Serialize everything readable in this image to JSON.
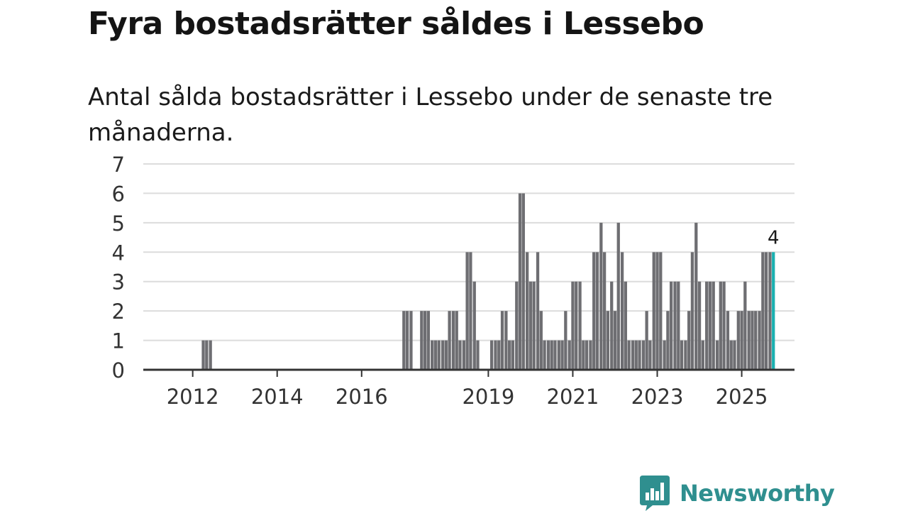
{
  "title": "Fyra bostadsrätter såldes i Lessebo",
  "subtitle": "Antal sålda bostadsrätter i Lessebo under de senaste tre månaderna.",
  "brand": {
    "name": "Newsworthy",
    "color": "#2f8f8f",
    "icon": "bar-chart-speech-bubble-icon"
  },
  "colors": {
    "bar": "#6e6e72",
    "highlight": "#1ab0b0",
    "grid": "#dcdcdc",
    "axis": "#333333"
  },
  "chart_data": {
    "type": "bar",
    "title": "Antal sålda bostadsrätter i Lessebo under de senaste tre månaderna.",
    "xlabel": "",
    "ylabel": "",
    "ylim": [
      0,
      7
    ],
    "yticks": [
      0,
      1,
      2,
      3,
      4,
      5,
      6,
      7
    ],
    "x_range": [
      2010.83,
      2026.25
    ],
    "xticks": [
      {
        "label": "2012",
        "at": 2012.0
      },
      {
        "label": "2014",
        "at": 2014.0
      },
      {
        "label": "2016",
        "at": 2016.0
      },
      {
        "label": "2019",
        "at": 2019.0
      },
      {
        "label": "2021",
        "at": 2021.0
      },
      {
        "label": "2023",
        "at": 2023.0
      },
      {
        "label": "2025",
        "at": 2025.0
      }
    ],
    "grid": true,
    "bar_width_years": 0.072,
    "series": [
      {
        "name": "Antal sålda",
        "x": [
          2012.25,
          2012.33,
          2012.42,
          2017.0,
          2017.08,
          2017.17,
          2017.42,
          2017.5,
          2017.58,
          2017.67,
          2017.75,
          2017.83,
          2017.92,
          2018.0,
          2018.08,
          2018.17,
          2018.25,
          2018.33,
          2018.42,
          2018.5,
          2018.58,
          2018.67,
          2018.75,
          2019.08,
          2019.17,
          2019.25,
          2019.33,
          2019.42,
          2019.5,
          2019.58,
          2019.67,
          2019.75,
          2019.83,
          2019.92,
          2020.0,
          2020.08,
          2020.17,
          2020.25,
          2020.33,
          2020.42,
          2020.5,
          2020.58,
          2020.67,
          2020.75,
          2020.83,
          2020.92,
          2021.0,
          2021.08,
          2021.17,
          2021.25,
          2021.33,
          2021.42,
          2021.5,
          2021.58,
          2021.67,
          2021.75,
          2021.83,
          2021.92,
          2022.0,
          2022.08,
          2022.17,
          2022.25,
          2022.33,
          2022.42,
          2022.5,
          2022.58,
          2022.67,
          2022.75,
          2022.83,
          2022.92,
          2023.0,
          2023.08,
          2023.17,
          2023.25,
          2023.33,
          2023.42,
          2023.5,
          2023.58,
          2023.67,
          2023.75,
          2023.83,
          2023.92,
          2024.0,
          2024.08,
          2024.17,
          2024.25,
          2024.33,
          2024.42,
          2024.5,
          2024.58,
          2024.67,
          2024.75,
          2024.83,
          2024.92,
          2025.0,
          2025.08,
          2025.17,
          2025.25,
          2025.33,
          2025.42,
          2025.5,
          2025.58,
          2025.67,
          2025.75
        ],
        "values": [
          1,
          1,
          1,
          2,
          2,
          2,
          2,
          2,
          2,
          1,
          1,
          1,
          1,
          1,
          2,
          2,
          2,
          1,
          1,
          4,
          4,
          3,
          1,
          1,
          1,
          1,
          2,
          2,
          1,
          1,
          3,
          6,
          6,
          4,
          3,
          3,
          4,
          2,
          1,
          1,
          1,
          1,
          1,
          1,
          2,
          1,
          3,
          3,
          3,
          1,
          1,
          1,
          4,
          4,
          5,
          4,
          2,
          3,
          2,
          5,
          4,
          3,
          1,
          1,
          1,
          1,
          1,
          2,
          1,
          4,
          4,
          4,
          1,
          2,
          3,
          3,
          3,
          1,
          1,
          2,
          4,
          5,
          3,
          1,
          3,
          3,
          3,
          1,
          3,
          3,
          2,
          1,
          1,
          2,
          2,
          3,
          2,
          2,
          2,
          2,
          4,
          4,
          4,
          4
        ],
        "highlight_last": true
      }
    ],
    "annotations": [
      {
        "text": "4",
        "x": 2025.75,
        "y": 4
      }
    ]
  }
}
